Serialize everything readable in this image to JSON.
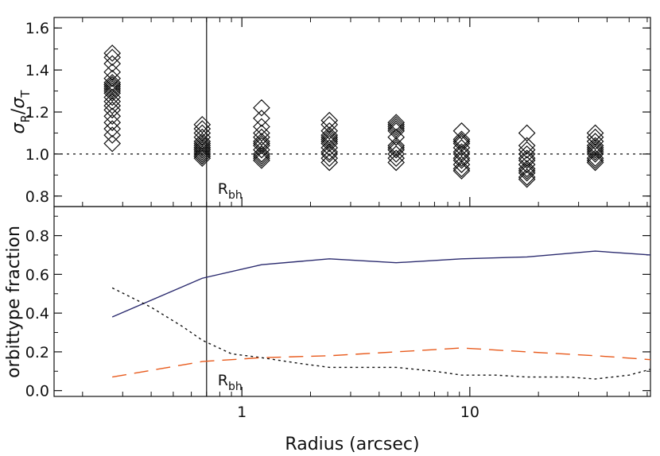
{
  "chart_data": [
    {
      "panel": "top",
      "type": "scatter",
      "marker": "diamond",
      "ylabel": "σR/σT",
      "ylim": [
        0.75,
        1.65
      ],
      "yticks": [
        0.8,
        1.0,
        1.2,
        1.4,
        1.6
      ],
      "ytick_labels": [
        "0.8",
        "1.0",
        "1.2",
        "1.4",
        "1.6"
      ],
      "x_scale": "log",
      "xlim": [
        0.15,
        62
      ],
      "reference_line": {
        "y": 1.0,
        "style": "dotted"
      },
      "vertical_line": {
        "x": 0.7,
        "label": "R",
        "label_sub": "bh"
      },
      "series": [
        {
          "values": [
            {
              "x": 0.27,
              "y": [
                1.05,
                1.09,
                1.12,
                1.15,
                1.18,
                1.21,
                1.23,
                1.25,
                1.27,
                1.29,
                1.3,
                1.31,
                1.32,
                1.33,
                1.33,
                1.34,
                1.36,
                1.39,
                1.43,
                1.46,
                1.48
              ]
            },
            {
              "x": 0.67,
              "y": [
                0.98,
                0.99,
                0.99,
                1.0,
                1.0,
                1.01,
                1.02,
                1.02,
                1.03,
                1.03,
                1.04,
                1.05,
                1.06,
                1.08,
                1.1,
                1.12,
                1.14
              ]
            },
            {
              "x": 1.22,
              "y": [
                0.97,
                0.98,
                0.99,
                1.0,
                1.0,
                1.02,
                1.04,
                1.05,
                1.06,
                1.08,
                1.1,
                1.13,
                1.17,
                1.22
              ]
            },
            {
              "x": 2.42,
              "y": [
                0.96,
                0.98,
                1.0,
                1.01,
                1.03,
                1.05,
                1.06,
                1.07,
                1.08,
                1.09,
                1.11,
                1.14,
                1.16
              ]
            },
            {
              "x": 4.75,
              "y": [
                0.96,
                0.98,
                1.0,
                1.02,
                1.03,
                1.04,
                1.08,
                1.11,
                1.12,
                1.13,
                1.14,
                1.15
              ]
            },
            {
              "x": 9.2,
              "y": [
                0.92,
                0.93,
                0.95,
                0.97,
                0.98,
                1.0,
                1.01,
                1.03,
                1.05,
                1.06,
                1.06,
                1.07,
                1.11
              ]
            },
            {
              "x": 17.8,
              "y": [
                0.88,
                0.89,
                0.91,
                0.92,
                0.93,
                0.95,
                0.97,
                0.98,
                1.0,
                1.02,
                1.04,
                1.1
              ]
            },
            {
              "x": 35.5,
              "y": [
                0.96,
                0.97,
                0.98,
                1.0,
                1.01,
                1.02,
                1.03,
                1.04,
                1.06,
                1.08,
                1.1
              ]
            }
          ]
        }
      ]
    },
    {
      "panel": "bottom",
      "type": "line",
      "ylabel": "orbittype fraction",
      "xlabel": "Radius (arcsec)",
      "ylim": [
        -0.03,
        0.95
      ],
      "yticks": [
        0.0,
        0.2,
        0.4,
        0.6,
        0.8
      ],
      "ytick_labels": [
        "0.0",
        "0.2",
        "0.4",
        "0.6",
        "0.8"
      ],
      "x_scale": "log",
      "xlim": [
        0.15,
        62
      ],
      "xticks": [
        1,
        10
      ],
      "xtick_labels": [
        "1",
        "10"
      ],
      "vertical_line": {
        "x": 0.7,
        "label": "R",
        "label_sub": "bh"
      },
      "series": [
        {
          "color": "#2a2a6e",
          "dash": "solid",
          "x": [
            0.27,
            0.67,
            1.22,
            2.42,
            4.75,
            9.2,
            17.8,
            35.5,
            62
          ],
          "y": [
            0.38,
            0.58,
            0.65,
            0.68,
            0.66,
            0.68,
            0.69,
            0.72,
            0.7
          ]
        },
        {
          "color": "#111111",
          "dash": "dotted",
          "x": [
            0.27,
            0.4,
            0.55,
            0.67,
            0.9,
            1.22,
            1.8,
            2.42,
            3.5,
            4.75,
            7,
            9.2,
            13,
            17.8,
            27,
            35.5,
            50,
            62
          ],
          "y": [
            0.53,
            0.43,
            0.33,
            0.26,
            0.19,
            0.17,
            0.14,
            0.12,
            0.12,
            0.12,
            0.1,
            0.08,
            0.08,
            0.07,
            0.07,
            0.06,
            0.08,
            0.11
          ]
        },
        {
          "color": "#e85a1c",
          "dash": "dashed",
          "x": [
            0.27,
            0.67,
            1.22,
            2.42,
            4.75,
            9.2,
            17.8,
            35.5,
            62
          ],
          "y": [
            0.07,
            0.15,
            0.17,
            0.18,
            0.2,
            0.22,
            0.2,
            0.18,
            0.16
          ]
        }
      ]
    }
  ]
}
